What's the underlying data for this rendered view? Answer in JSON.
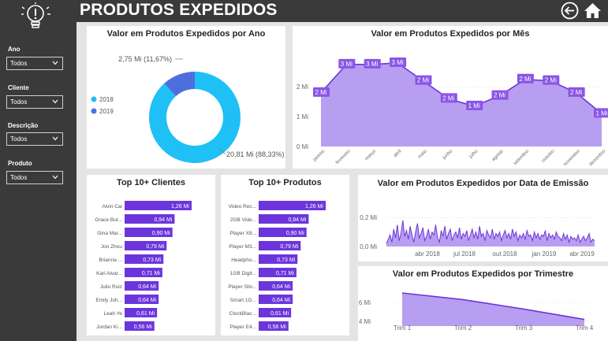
{
  "header": {
    "title": "PRODUTOS EXPEDIDOS",
    "back_icon": "back-arrow-icon",
    "home_icon": "home-icon"
  },
  "sidebar": {
    "logo_icon": "lightbulb-idea-icon",
    "filters": [
      {
        "label": "Ano",
        "value": "Todos"
      },
      {
        "label": "Cliente",
        "value": "Todos"
      },
      {
        "label": "Descrição",
        "value": "Todos"
      },
      {
        "label": "Produto",
        "value": "Todos"
      }
    ]
  },
  "colors": {
    "sidebar_bg": "#3a3a3a",
    "cyan": "#1fc0f5",
    "blue": "#4d6fde",
    "purple": "#6c35dc",
    "lavender": "#b89ef0",
    "label_purple": "#8a55e6"
  },
  "chart_data": [
    {
      "type": "pie",
      "title": "Valor em Produtos Expedidos por Ano",
      "legend_position": "left",
      "categories": [
        "2018",
        "2019"
      ],
      "values": [
        20.81,
        2.75
      ],
      "slice_labels": [
        "20,81 Mi (88,33%)",
        "2,75 Mi (11,67%)"
      ],
      "colors": [
        "#1fc0f5",
        "#4d6fde"
      ]
    },
    {
      "type": "area",
      "title": "Valor em Produtos Expedidos por Mês",
      "categories": [
        "janeiro",
        "fevereiro",
        "março",
        "abril",
        "maio",
        "junho",
        "julho",
        "agosto",
        "setembro",
        "outubro",
        "novembro",
        "dezembro"
      ],
      "values": [
        1.8,
        2.75,
        2.75,
        2.8,
        2.2,
        1.6,
        1.35,
        1.7,
        2.25,
        2.2,
        1.8,
        1.1
      ],
      "data_labels": [
        "2 Mi",
        "3 Mi",
        "3 Mi",
        "3 Mi",
        "2 Mi",
        "2 Mi",
        "1 Mi",
        "2 Mi",
        "2 Mi",
        "2 Mi",
        "2 Mi",
        "1 Mi"
      ],
      "yticks": [
        "0 Mi",
        "1 Mi",
        "2 Mi"
      ],
      "ylim": [
        0,
        3.3
      ],
      "grid": true
    },
    {
      "type": "bar",
      "title": "Top 10+ Clientes",
      "categories": [
        "Alvin Cai",
        "Grace But...",
        "Gina Mar...",
        "Jon Zhou",
        "Brianna ...",
        "Kari Alvar...",
        "Julio Ruiz",
        "Emily Joh...",
        "Leah Ye",
        "Jordan Ki..."
      ],
      "values": [
        1.26,
        0.94,
        0.9,
        0.79,
        0.73,
        0.71,
        0.64,
        0.64,
        0.61,
        0.56
      ],
      "data_labels": [
        "1,26 Mi",
        "0,94 Mi",
        "0,90 Mi",
        "0,79 Mi",
        "0,73 Mi",
        "0,71 Mi",
        "0,64 Mi",
        "0,64 Mi",
        "0,61 Mi",
        "0,56 Mi"
      ]
    },
    {
      "type": "bar",
      "title": "Top 10+ Produtos",
      "categories": [
        "Video Rec...",
        "2GB Vide...",
        "Player X8...",
        "Player M3...",
        "Headpho...",
        "1GB Digit...",
        "Player Silv...",
        "Smart 1G...",
        "ClockBlac...",
        "Player E4..."
      ],
      "values": [
        1.26,
        0.94,
        0.9,
        0.79,
        0.73,
        0.71,
        0.64,
        0.64,
        0.61,
        0.56
      ],
      "data_labels": [
        "1,26 Mi",
        "0,94 Mi",
        "0,90 Mi",
        "0,79 Mi",
        "0,73 Mi",
        "0,71 Mi",
        "0,64 Mi",
        "0,64 Mi",
        "0,61 Mi",
        "0,56 Mi"
      ]
    },
    {
      "type": "area",
      "title": "Valor em Produtos Expedidos por Data de Emissão",
      "x_ticks": [
        "abr 2018",
        "jul 2018",
        "out 2018",
        "jan 2019",
        "abr 2019"
      ],
      "yticks": [
        "0,0 Mi",
        "0,2 Mi"
      ],
      "ylim": [
        0,
        0.25
      ],
      "values": [
        0.02,
        0.05,
        0.08,
        0.03,
        0.12,
        0.06,
        0.15,
        0.04,
        0.09,
        0.18,
        0.07,
        0.11,
        0.05,
        0.14,
        0.08,
        0.03,
        0.1,
        0.16,
        0.06,
        0.09,
        0.13,
        0.04,
        0.07,
        0.12,
        0.05,
        0.1,
        0.08,
        0.15,
        0.06,
        0.03,
        0.11,
        0.07,
        0.14,
        0.05,
        0.09,
        0.12,
        0.04,
        0.08,
        0.1,
        0.06,
        0.13,
        0.05,
        0.09,
        0.07,
        0.11,
        0.04,
        0.08,
        0.12,
        0.06,
        0.1,
        0.05,
        0.14,
        0.07,
        0.09,
        0.04,
        0.11,
        0.08,
        0.06,
        0.12,
        0.05,
        0.09,
        0.07,
        0.1,
        0.04,
        0.08,
        0.11,
        0.06,
        0.09,
        0.05,
        0.12,
        0.07,
        0.1,
        0.04,
        0.08,
        0.06,
        0.09,
        0.05,
        0.11,
        0.07,
        0.08,
        0.04,
        0.1,
        0.06,
        0.09,
        0.05,
        0.08,
        0.07,
        0.11,
        0.04,
        0.09,
        0.06,
        0.08,
        0.05,
        0.1,
        0.07,
        0.06,
        0.04,
        0.09,
        0.05,
        0.08,
        0.03,
        0.07,
        0.05,
        0.06,
        0.04,
        0.08,
        0.03,
        0.05,
        0.07,
        0.04,
        0.06,
        0.09,
        0.03,
        0.05,
        0.04
      ]
    },
    {
      "type": "area",
      "title": "Valor em Produtos Expedidos por Trimestre",
      "categories": [
        "Trim 1",
        "Trim 2",
        "Trim 3",
        "Trim 4"
      ],
      "values": [
        7.0,
        6.3,
        5.3,
        4.2
      ],
      "yticks": [
        "4 Mi",
        "6 Mi"
      ],
      "ylim": [
        3.5,
        7.5
      ]
    }
  ]
}
